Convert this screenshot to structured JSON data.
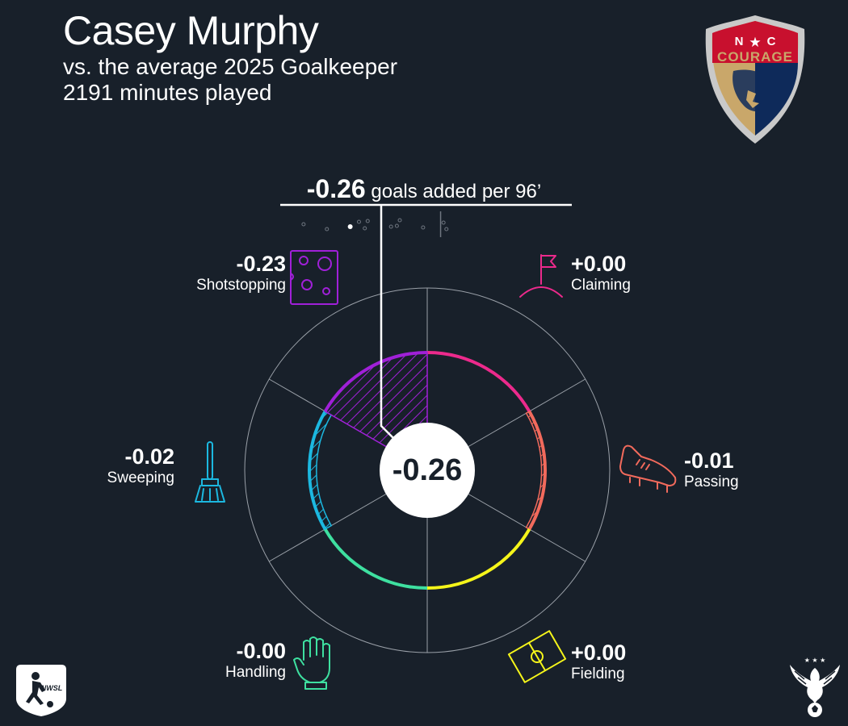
{
  "player": {
    "name": "Casey Murphy",
    "comparison": "vs. the average 2025 Goalkeeper",
    "minutes": "2191 minutes played"
  },
  "colors": {
    "background": "#18202a",
    "shotstopping": "#a020d8",
    "claiming": "#ec2a8c",
    "passing": "#f26a5c",
    "fielding": "#f5f51a",
    "handling": "#3ee0a0",
    "sweeping": "#1cb8e0",
    "grid": "#9aa0a8",
    "team_red": "#c8102e",
    "team_navy": "#0e2a5a",
    "team_gold": "#c9a76a"
  },
  "chart_data": {
    "type": "radial",
    "title": "goals added per 96’",
    "total": "-0.26",
    "total_display": "-0.26",
    "categories": [
      {
        "name": "Claiming",
        "value": 0.0,
        "label": "+0.00",
        "icon": "corner-flag-icon"
      },
      {
        "name": "Passing",
        "value": -0.01,
        "label": "-0.01",
        "icon": "boot-icon"
      },
      {
        "name": "Fielding",
        "value": 0.0,
        "label": "+0.00",
        "icon": "pitch-icon"
      },
      {
        "name": "Handling",
        "value": -0.0,
        "label": "-0.00",
        "icon": "glove-icon"
      },
      {
        "name": "Sweeping",
        "value": -0.02,
        "label": "-0.02",
        "icon": "broom-icon"
      },
      {
        "name": "Shotstopping",
        "value": -0.23,
        "label": "-0.23",
        "icon": "cheese-icon"
      }
    ],
    "radial_range": [
      -0.5,
      0.5
    ],
    "distribution_strip": [
      -0.42,
      -0.34,
      -0.23,
      -0.21,
      -0.2,
      -0.12,
      -0.09,
      -0.1,
      -0.01,
      0.06,
      0.07
    ]
  },
  "logos": {
    "team_top": "N",
    "team_star": "★",
    "team_top2": "C",
    "team_word": "COURAGE",
    "league": "NWSL"
  }
}
